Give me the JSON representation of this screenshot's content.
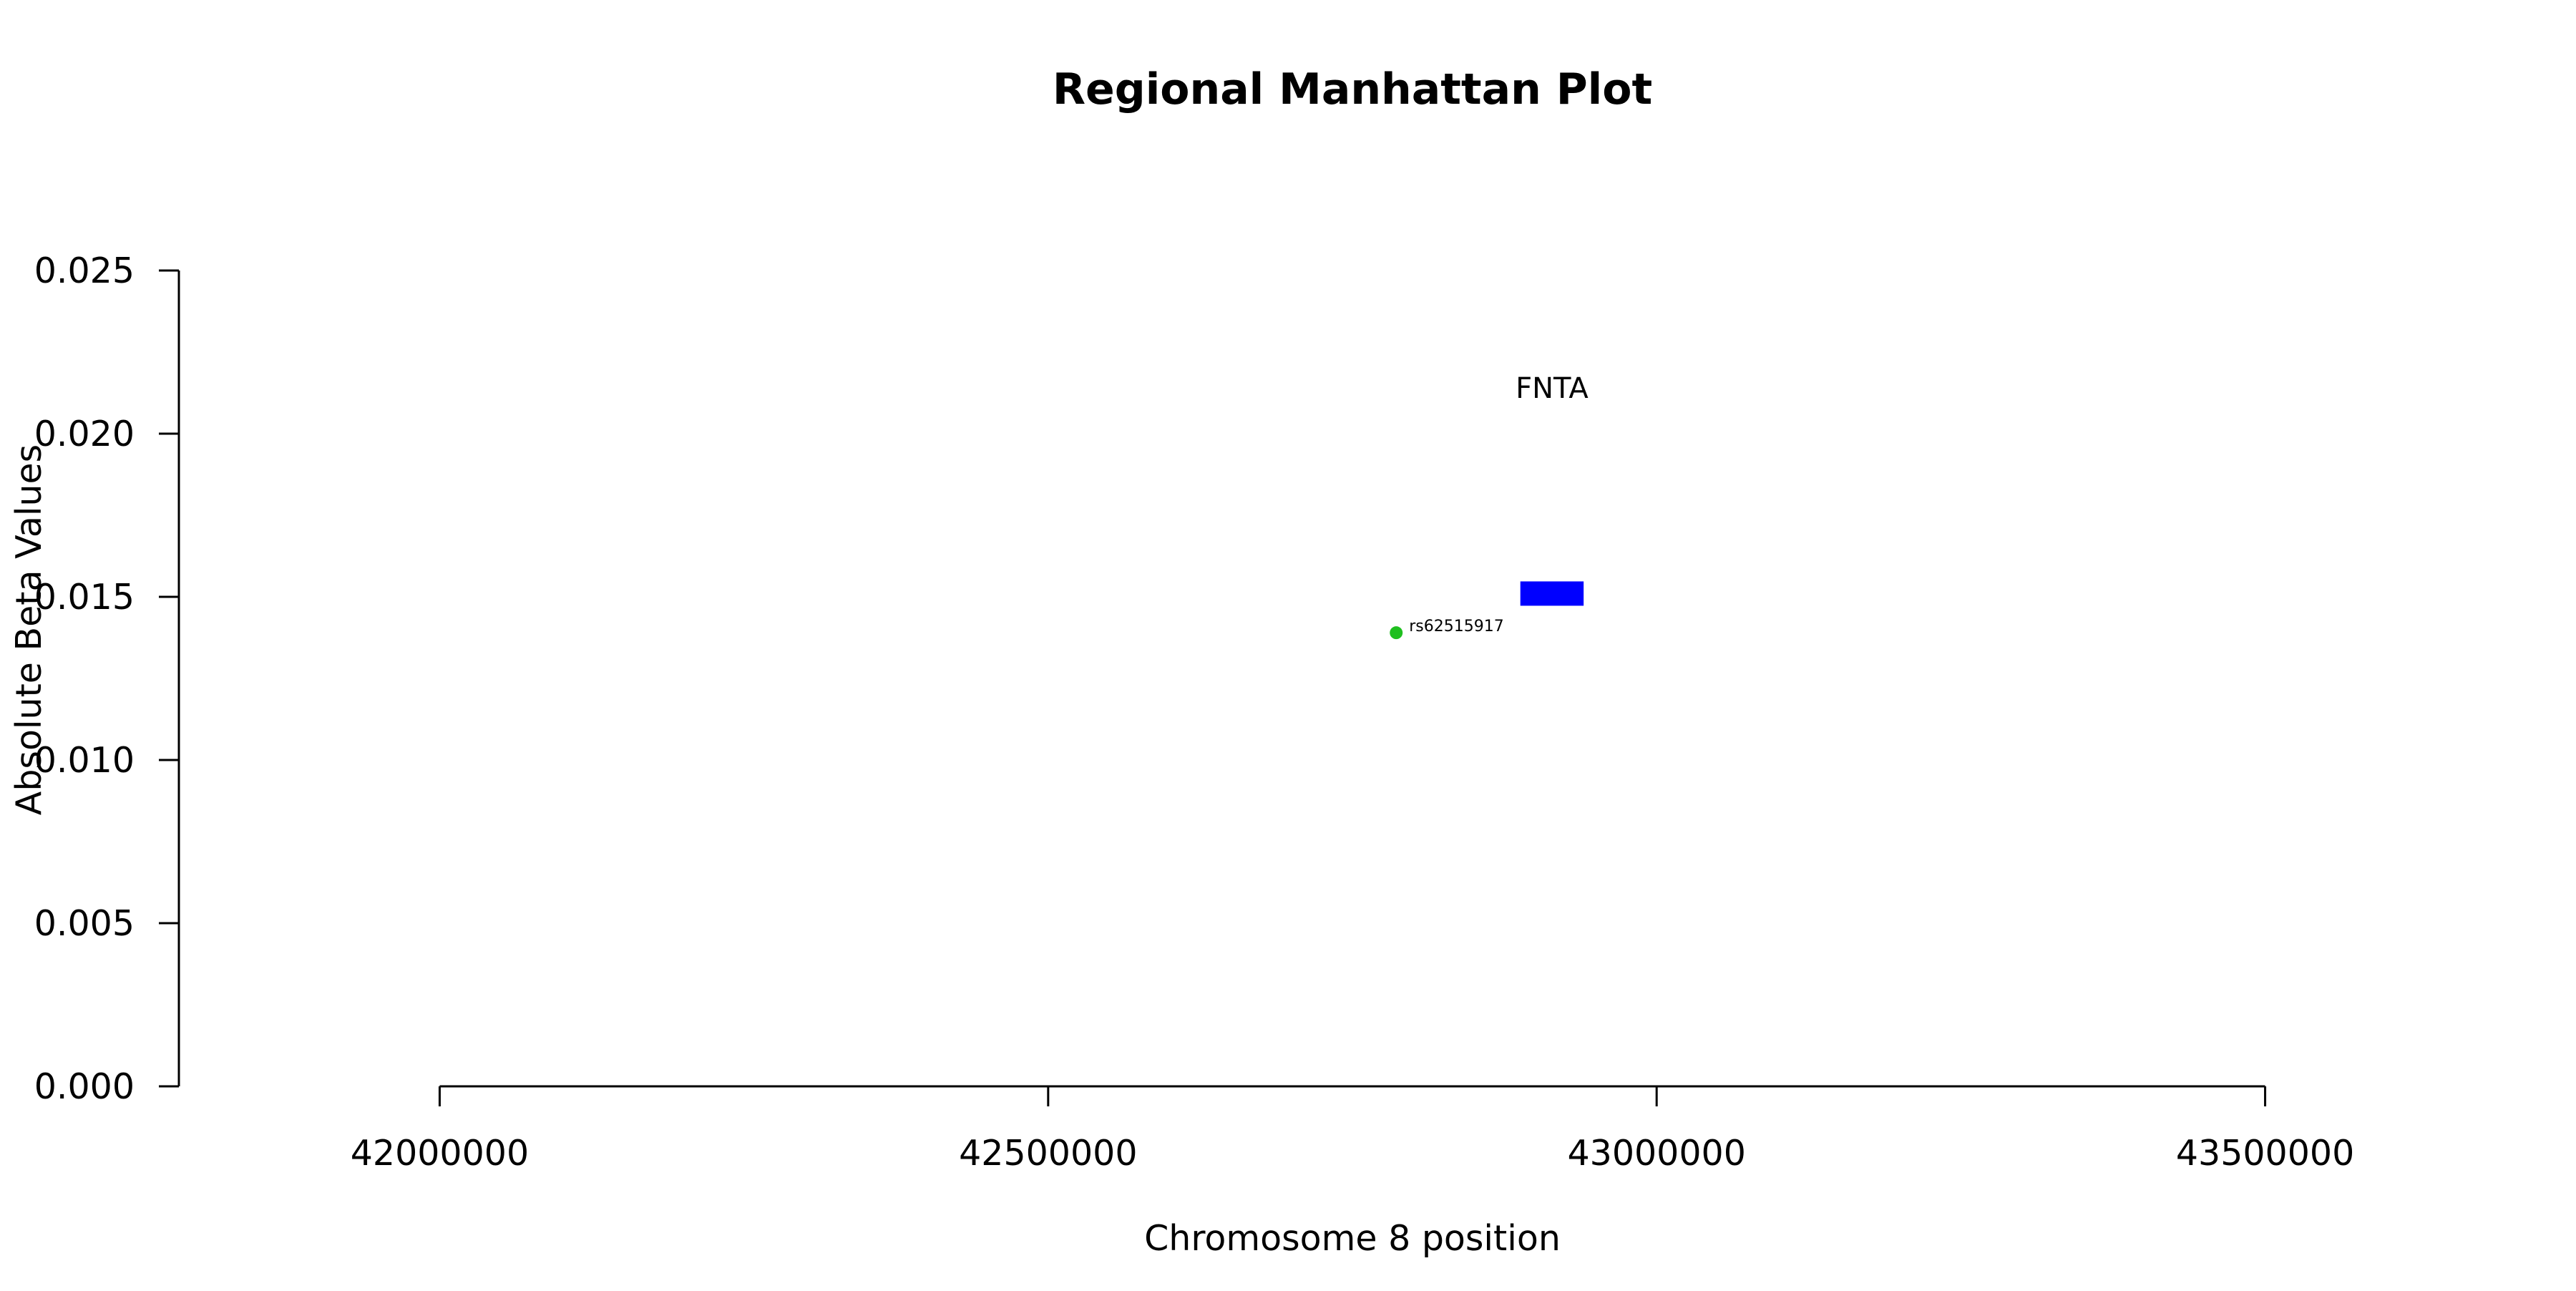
{
  "chart_data": {
    "type": "scatter",
    "title": "Regional Manhattan Plot",
    "xlabel": "Chromosome 8 position",
    "ylabel": "Absolute Beta Values",
    "xlim": [
      41785714,
      43714286
    ],
    "ylim": [
      0,
      0.025
    ],
    "x_ticks": [
      42000000,
      42500000,
      43000000,
      43500000
    ],
    "x_tick_labels": [
      "42000000",
      "42500000",
      "43000000",
      "43500000"
    ],
    "y_ticks": [
      0,
      0.005,
      0.01,
      0.015,
      0.02,
      0.025
    ],
    "y_tick_labels": [
      "0.000",
      "0.005",
      "0.010",
      "0.015",
      "0.020",
      "0.025"
    ],
    "grid": false,
    "points": [
      {
        "x": 42786000,
        "y": 0.0139,
        "label": "rs62515917",
        "color": "#1fbf1f"
      }
    ],
    "genes": [
      {
        "name": "FNTA",
        "start": 42888000,
        "end": 42940000,
        "y": 0.0151,
        "label_y": 0.0214,
        "color": "#0000ff"
      }
    ]
  }
}
